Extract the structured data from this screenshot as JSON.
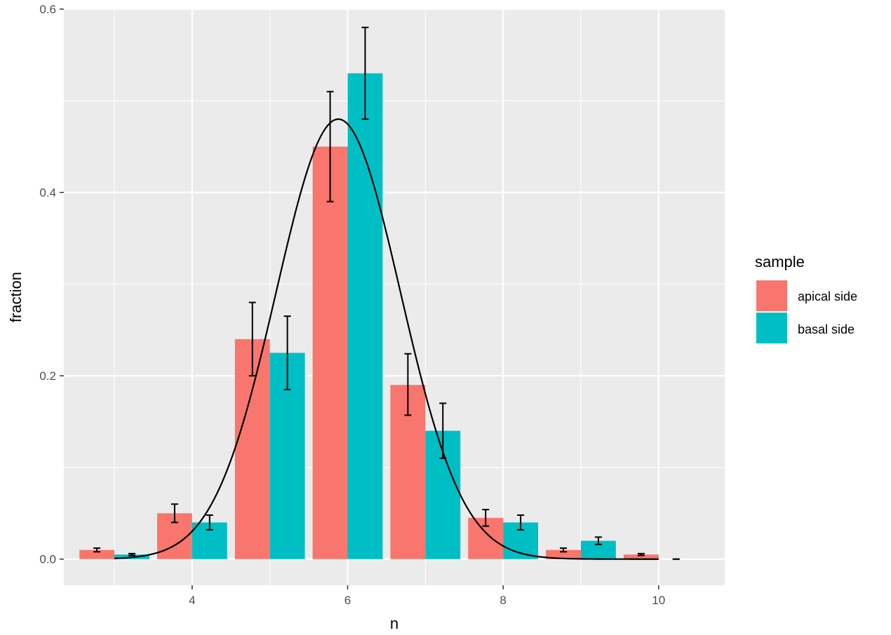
{
  "chart_data": {
    "type": "bar",
    "title": "",
    "xlabel": "n",
    "ylabel": "fraction",
    "xlim": [
      2.35,
      10.85
    ],
    "ylim": [
      -0.0285,
      0.6
    ],
    "xticks": [
      4,
      6,
      8,
      10
    ],
    "yticks": [
      0.0,
      0.2,
      0.4,
      0.6
    ],
    "x_tick_labels": [
      "4",
      "6",
      "8",
      "10"
    ],
    "y_tick_labels": [
      "0.0",
      "0.2",
      "0.4",
      "0.6"
    ],
    "grid": true,
    "legend": {
      "title": "sample",
      "position": "right"
    },
    "categories": [
      3,
      4,
      5,
      6,
      7,
      8,
      9,
      10
    ],
    "series": [
      {
        "name": "apical side",
        "color": "#F8766D",
        "values": [
          0.01,
          0.05,
          0.24,
          0.45,
          0.19,
          0.045,
          0.01,
          0.005
        ],
        "error_low": [
          0.008,
          0.04,
          0.2,
          0.39,
          0.157,
          0.036,
          0.008,
          0.004
        ],
        "error_high": [
          0.012,
          0.06,
          0.28,
          0.51,
          0.224,
          0.054,
          0.012,
          0.006
        ]
      },
      {
        "name": "basal side",
        "color": "#00BFC4",
        "values": [
          0.005,
          0.04,
          0.225,
          0.53,
          0.14,
          0.04,
          0.02,
          0.0
        ],
        "error_low": [
          0.004,
          0.032,
          0.185,
          0.48,
          0.11,
          0.032,
          0.016,
          0.0
        ],
        "error_high": [
          0.006,
          0.048,
          0.265,
          0.58,
          0.17,
          0.048,
          0.024,
          0.0
        ]
      }
    ],
    "fit_curve": {
      "type": "gaussian",
      "peak_x": 5.88,
      "peak_y": 0.48,
      "sigma": 0.8,
      "x_range": [
        3.0,
        10.0
      ],
      "color": "#000000"
    },
    "bar_width": 0.45,
    "dodge_offset": 0.225
  }
}
